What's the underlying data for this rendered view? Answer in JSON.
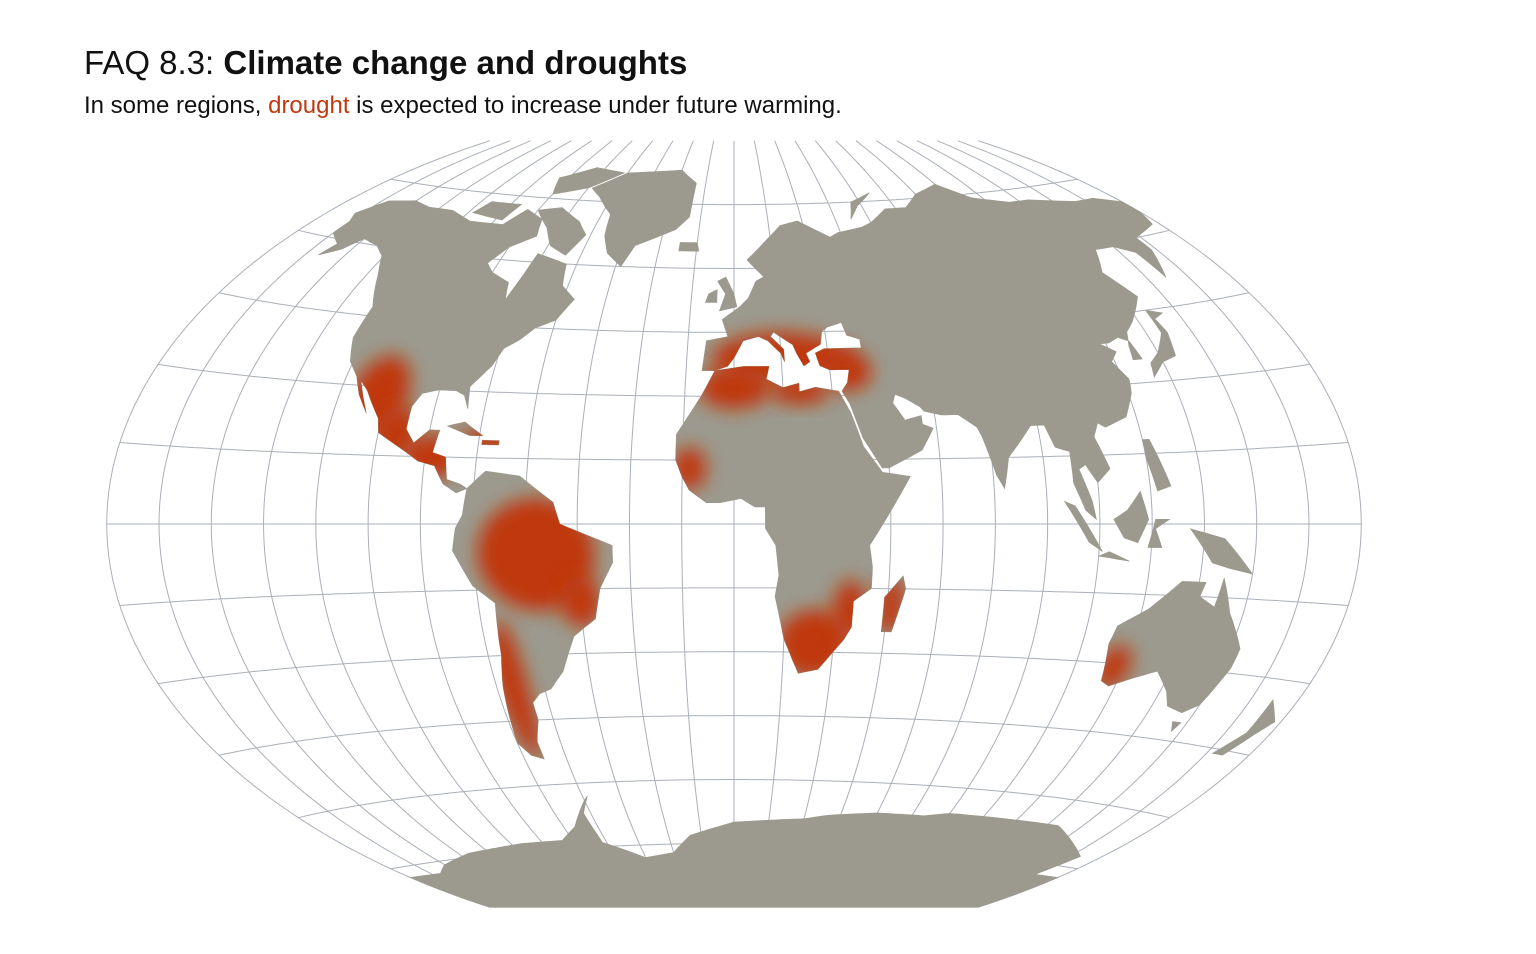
{
  "header": {
    "title_prefix": "FAQ 8.3: ",
    "title_main": "Climate change and droughts",
    "subtitle_before": "In some regions, ",
    "subtitle_highlight": "drought",
    "subtitle_after": " is expected to increase under future warming."
  },
  "map": {
    "projection": "Winkel tripel",
    "graticule_step_deg": 15,
    "colors": {
      "land": "#9c9a8e",
      "drought": "#c0390f",
      "graticule": "#aab0b8",
      "ocean": "#ffffff"
    },
    "drought_regions": [
      {
        "lon": -108,
        "lat": 28,
        "rlon": 9,
        "rlat": 9
      },
      {
        "lon": -100,
        "lat": 20,
        "rlon": 7,
        "rlat": 6
      },
      {
        "lon": -88,
        "lat": 15,
        "rlon": 9,
        "rlat": 5
      },
      {
        "lon": -72,
        "lat": 19,
        "rlon": 8,
        "rlat": 3
      },
      {
        "lon": -57,
        "lat": -7,
        "rlon": 17,
        "rlat": 13
      },
      {
        "lon": -45,
        "lat": -18,
        "rlon": 6,
        "rlat": 6
      },
      {
        "lon": -70,
        "lat": -38,
        "rlon": 5,
        "rlat": 16
      },
      {
        "lon": 15,
        "lat": 39,
        "rlon": 22,
        "rlat": 6
      },
      {
        "lon": 35,
        "lat": 36,
        "rlon": 8,
        "rlat": 5
      },
      {
        "lon": 0,
        "lat": 32,
        "rlon": 11,
        "rlat": 5
      },
      {
        "lon": 20,
        "lat": 31,
        "rlon": 9,
        "rlat": 3
      },
      {
        "lon": -13,
        "lat": 13,
        "rlon": 5,
        "rlat": 5
      },
      {
        "lon": 24,
        "lat": -28,
        "rlon": 11,
        "rlat": 8
      },
      {
        "lon": 34,
        "lat": -20,
        "rlon": 5,
        "rlat": 7
      },
      {
        "lon": 46,
        "lat": -19,
        "rlon": 4,
        "rlat": 7
      },
      {
        "lon": 117,
        "lat": -31,
        "rlon": 5,
        "rlat": 5
      }
    ]
  }
}
